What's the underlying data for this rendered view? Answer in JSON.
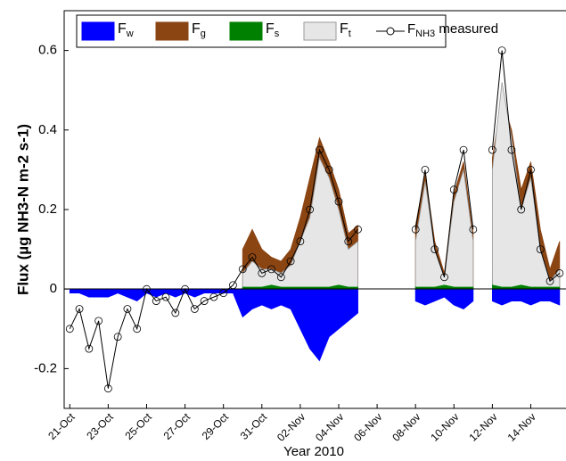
{
  "chart_data": {
    "type": "area",
    "ylabel": "Flux (µg NH3-N m-2 s-1)",
    "xlabel": "Year 2010",
    "legend": "upper left",
    "grid": false,
    "x": [
      "2010-10-21T00:00",
      "2010-10-21T12:00",
      "2010-10-22T00:00",
      "2010-10-22T12:00",
      "2010-10-23T00:00",
      "2010-10-23T12:00",
      "2010-10-24T00:00",
      "2010-10-24T12:00",
      "2010-10-25T00:00",
      "2010-10-25T12:00",
      "2010-10-26T00:00",
      "2010-10-26T12:00",
      "2010-10-27T00:00",
      "2010-10-27T12:00",
      "2010-10-28T00:00",
      "2010-10-28T12:00",
      "2010-10-29T00:00",
      "2010-10-29T12:00",
      "2010-10-30T00:00",
      "2010-10-30T12:00",
      "2010-10-31T00:00",
      "2010-10-31T12:00",
      "2010-11-01T00:00",
      "2010-11-01T12:00",
      "2010-11-02T00:00",
      "2010-11-02T12:00",
      "2010-11-03T00:00",
      "2010-11-03T12:00",
      "2010-11-04T00:00",
      "2010-11-04T12:00",
      "2010-11-05T00:00",
      "2010-11-05T12:00",
      "2010-11-06T00:00",
      "2010-11-06T12:00",
      "2010-11-07T00:00",
      "2010-11-07T12:00",
      "2010-11-08T00:00",
      "2010-11-08T12:00",
      "2010-11-09T00:00",
      "2010-11-09T12:00",
      "2010-11-10T00:00",
      "2010-11-10T12:00",
      "2010-11-11T00:00",
      "2010-11-11T12:00",
      "2010-11-12T00:00",
      "2010-11-12T12:00",
      "2010-11-13T00:00",
      "2010-11-13T12:00",
      "2010-11-14T00:00",
      "2010-11-14T12:00",
      "2010-11-15T00:00",
      "2010-11-15T12:00"
    ],
    "xlim": [
      "2010-10-20T17:00",
      "2010-11-15T20:00"
    ],
    "xticks": [
      {
        "value": "2010-10-21T00:00",
        "label": "21-Oct"
      },
      {
        "value": "2010-10-23T00:00",
        "label": "23-Oct"
      },
      {
        "value": "2010-10-25T00:00",
        "label": "25-Oct"
      },
      {
        "value": "2010-10-27T00:00",
        "label": "27-Oct"
      },
      {
        "value": "2010-10-29T00:00",
        "label": "29-Oct"
      },
      {
        "value": "2010-10-31T00:00",
        "label": "31-Oct"
      },
      {
        "value": "2010-11-02T00:00",
        "label": "02-Nov"
      },
      {
        "value": "2010-11-04T00:00",
        "label": "04-Nov"
      },
      {
        "value": "2010-11-06T00:00",
        "label": "06-Nov"
      },
      {
        "value": "2010-11-08T00:00",
        "label": "08-Nov"
      },
      {
        "value": "2010-11-10T00:00",
        "label": "10-Nov"
      },
      {
        "value": "2010-11-12T00:00",
        "label": "12-Nov"
      },
      {
        "value": "2010-11-14T00:00",
        "label": "14-Nov"
      }
    ],
    "ylim": [
      -0.3,
      0.7
    ],
    "yticks": [
      -0.2,
      0,
      0.2,
      0.4,
      0.6
    ],
    "series": [
      {
        "name": "Fg",
        "type": "area",
        "color": "#8B4513",
        "values": [
          null,
          null,
          null,
          null,
          null,
          null,
          null,
          null,
          null,
          null,
          null,
          null,
          null,
          null,
          null,
          null,
          null,
          null,
          0.1,
          0.15,
          0.1,
          0.08,
          0.07,
          0.1,
          0.18,
          0.28,
          0.38,
          0.32,
          0.25,
          0.14,
          0.16,
          null,
          null,
          null,
          null,
          null,
          0.16,
          0.29,
          0.12,
          0.04,
          0.24,
          0.32,
          0.14,
          null,
          0.33,
          0.48,
          0.4,
          0.25,
          0.32,
          0.15,
          0.05,
          0.12
        ]
      },
      {
        "name": "Ft",
        "type": "area",
        "color": "#E6E6E6",
        "values": [
          null,
          null,
          null,
          null,
          null,
          null,
          null,
          null,
          null,
          null,
          null,
          null,
          null,
          null,
          null,
          null,
          null,
          null,
          0.04,
          0.07,
          0.05,
          0.05,
          0.04,
          0.06,
          0.12,
          0.18,
          0.33,
          0.28,
          0.2,
          0.1,
          0.12,
          null,
          null,
          null,
          null,
          null,
          0.12,
          0.27,
          0.1,
          0.03,
          0.22,
          0.3,
          0.12,
          null,
          0.3,
          0.52,
          0.38,
          0.2,
          0.28,
          0.1,
          0.02,
          0.05
        ]
      },
      {
        "name": "Fw",
        "type": "area",
        "color": "#0000FF",
        "values": [
          -0.01,
          -0.01,
          -0.02,
          -0.02,
          -0.02,
          -0.01,
          -0.02,
          -0.03,
          -0.01,
          -0.02,
          -0.01,
          -0.02,
          -0.01,
          -0.02,
          -0.01,
          -0.01,
          -0.01,
          -0.01,
          -0.07,
          -0.05,
          -0.04,
          -0.05,
          -0.04,
          -0.05,
          -0.1,
          -0.15,
          -0.18,
          -0.12,
          -0.1,
          -0.08,
          -0.06,
          null,
          null,
          null,
          null,
          null,
          -0.03,
          -0.04,
          -0.03,
          -0.02,
          -0.04,
          -0.05,
          -0.03,
          null,
          -0.03,
          -0.04,
          -0.03,
          -0.03,
          -0.04,
          -0.03,
          -0.03,
          -0.04
        ]
      },
      {
        "name": "Fs",
        "type": "area",
        "color": "#008000",
        "values": [
          null,
          null,
          null,
          null,
          null,
          null,
          null,
          null,
          null,
          null,
          null,
          null,
          null,
          null,
          null,
          null,
          null,
          null,
          0.005,
          0.005,
          0.005,
          0.01,
          0.005,
          0.005,
          0.005,
          0.005,
          0.005,
          0.005,
          0.01,
          0.005,
          0.005,
          null,
          null,
          null,
          null,
          null,
          0.005,
          0.005,
          0.005,
          0.01,
          0.005,
          0.005,
          0.005,
          null,
          0.01,
          0.005,
          0.005,
          0.01,
          0.005,
          0.005,
          0.005,
          0.005
        ]
      },
      {
        "name": "FNH3 measured",
        "type": "line",
        "color": "#000000",
        "marker": "circle",
        "values": [
          -0.1,
          -0.05,
          -0.15,
          -0.08,
          -0.25,
          -0.12,
          -0.05,
          -0.1,
          0.0,
          -0.03,
          -0.02,
          -0.06,
          0.0,
          -0.05,
          -0.03,
          -0.02,
          -0.01,
          0.01,
          0.05,
          0.08,
          0.04,
          0.05,
          0.03,
          0.07,
          0.12,
          0.2,
          0.35,
          0.3,
          0.22,
          0.12,
          0.15,
          null,
          null,
          null,
          null,
          null,
          0.15,
          0.3,
          0.1,
          0.03,
          0.25,
          0.35,
          0.15,
          null,
          0.35,
          0.6,
          0.35,
          0.2,
          0.3,
          0.1,
          0.02,
          0.04
        ]
      }
    ],
    "legend_order": [
      2,
      0,
      3,
      1,
      4
    ]
  }
}
